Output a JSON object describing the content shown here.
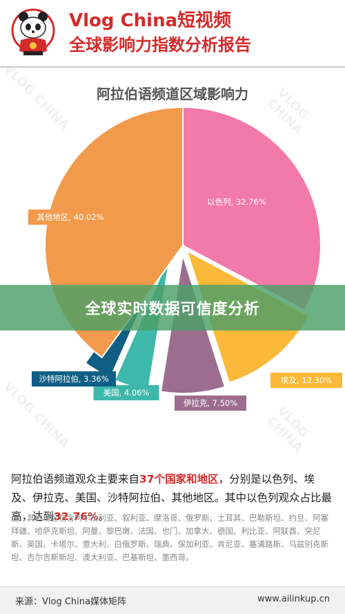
{
  "header": {
    "title": "Vlog China短视频",
    "subtitle": "全球影响力指数分析报告"
  },
  "banner": {
    "text": "全球实时数据可信度分析"
  },
  "chart_data": {
    "type": "pie",
    "title": "阿拉伯语频道区域影响力",
    "slices": [
      {
        "label": "以色列",
        "value": 32.76,
        "display": "以色列, 32.76%",
        "color": "#f27aab"
      },
      {
        "label": "埃及",
        "value": 12.3,
        "display": "埃及, 12.30%",
        "color": "#fbb939"
      },
      {
        "label": "伊拉克",
        "value": 7.5,
        "display": "伊拉克, 7.50%",
        "color": "#9c6d8f"
      },
      {
        "label": "美国",
        "value": 4.06,
        "display": "美国, 4.06%",
        "color": "#3fb8ac"
      },
      {
        "label": "沙特阿拉伯",
        "value": 3.36,
        "display": "沙特阿拉伯, 3.36%",
        "color": "#0f5f84"
      },
      {
        "label": "其他地区",
        "value": 40.02,
        "display": "其他地区, 40.02%",
        "color": "#f29a4c"
      }
    ]
  },
  "description": {
    "part1": "阿拉伯语频道观众主要来自",
    "highlight1": "37个国家和地区",
    "part2": "，分别是以色列、埃及、伊拉克、美国、沙特阿拉伯、其他地区。其中以色列观众占比最高，达到",
    "highlight2": "32.76%",
    "part3": "。"
  },
  "note": "注：其他地区包含阿尔及利亚、叙利亚、摩洛哥、俄罗斯、土耳其、巴勒斯坦、约旦、阿塞拜疆、哈萨克斯坦、阿曼、黎巴嫩、法国、也门、加拿大、德国、利比亚、阿联酋、突尼斯、英国、卡塔尔、意大利、白俄罗斯、瑞典、保加利亚、肯尼亚、塞浦路斯、乌兹别克斯坦、吉尔吉斯斯坦、澳大利亚、巴基斯坦、墨西哥。",
  "footer": {
    "source": "来源：Vlog China媒体矩阵",
    "url": "www.ailinkup.cn"
  },
  "watermark": "VLOG CHINA"
}
